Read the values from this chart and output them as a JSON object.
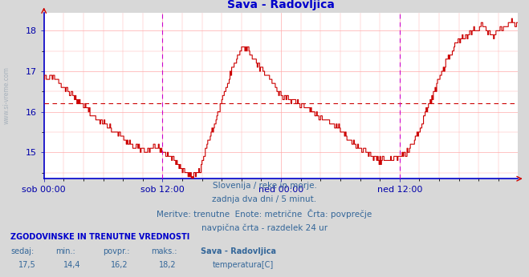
{
  "title": "Sava - Radovljica",
  "title_color": "#0000cc",
  "bg_color": "#d8d8d8",
  "plot_bg_color": "#ffffff",
  "grid_color": "#ffaaaa",
  "line_color": "#cc0000",
  "avg_line_value": 16.2,
  "vline_color": "#cc00cc",
  "axis_color": "#0000cc",
  "tick_color": "#0000aa",
  "ylim_min": 14.35,
  "ylim_max": 18.45,
  "yticks": [
    15,
    16,
    17,
    18
  ],
  "n_points": 576,
  "xtick_labels": [
    "sob 00:00",
    "sob 12:00",
    "ned 00:00",
    "ned 12:00"
  ],
  "xtick_positions": [
    0,
    144,
    288,
    432
  ],
  "vline_positions": [
    144,
    432
  ],
  "text_line1": "Slovenija / reke in morje.",
  "text_line2": "zadnja dva dni / 5 minut.",
  "text_line3": "Meritve: trenutne  Enote: metrične  Črta: povprečje",
  "text_line4": "navpična črta - razdelek 24 ur",
  "text_color": "#336699",
  "footer_bold": "ZGODOVINSKE IN TRENUTNE VREDNOSTI",
  "footer_col1_lbl": "sedaj:",
  "footer_col2_lbl": "min.:",
  "footer_col3_lbl": "povpr.:",
  "footer_col4_lbl": "maks.:",
  "footer_col5_lbl": "Sava - Radovljica",
  "footer_col1_val": "17,5",
  "footer_col2_val": "14,4",
  "footer_col3_val": "16,2",
  "footer_col4_val": "18,2",
  "footer_legend_label": "temperatura[C]",
  "footer_legend_color": "#cc0000",
  "left_watermark": "www.si-vreme.com"
}
